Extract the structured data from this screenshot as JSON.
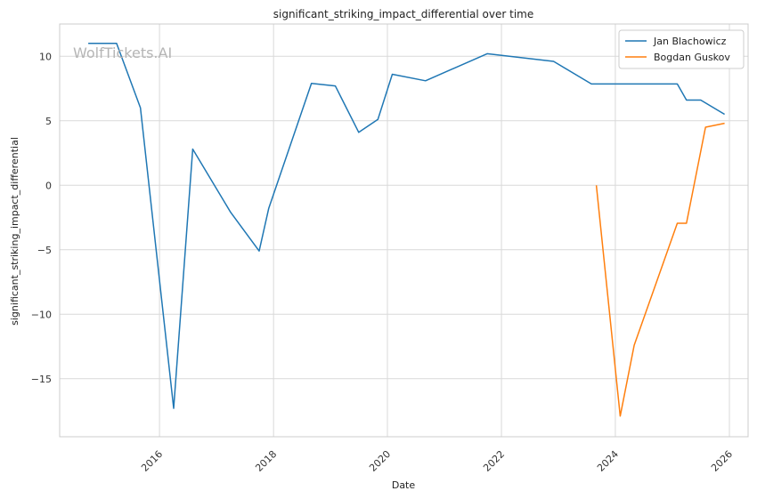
{
  "chart_data": {
    "type": "line",
    "title": "significant_striking_impact_differential over time",
    "xlabel": "Date",
    "ylabel": "significant_striking_impact_differential",
    "watermark": "WolfTickets.AI",
    "xlim": [
      "2014-04-01",
      "2026-05-01"
    ],
    "ylim": [
      -19.5,
      12.5
    ],
    "x_ticks": [
      "2016",
      "2018",
      "2020",
      "2022",
      "2024",
      "2026"
    ],
    "y_ticks": [
      10,
      5,
      0,
      -5,
      -10,
      -15
    ],
    "y_tick_labels": [
      "10",
      "5",
      "0",
      "−5",
      "−10",
      "−15"
    ],
    "grid": true,
    "legend_position": "top-right",
    "series": [
      {
        "name": "Jan Blachowicz",
        "color": "#1f77b4",
        "x": [
          "2014-10-01",
          "2015-04-01",
          "2015-09-01",
          "2016-04-01",
          "2016-08-01",
          "2017-04-01",
          "2017-10-01",
          "2017-12-01",
          "2018-09-01",
          "2019-02-01",
          "2019-07-01",
          "2019-11-01",
          "2020-02-01",
          "2020-09-01",
          "2021-10-01",
          "2022-12-01",
          "2023-08-01",
          "2025-02-01",
          "2025-04-01",
          "2025-07-01",
          "2025-12-01"
        ],
        "y": [
          11.0,
          11.0,
          6.0,
          -17.3,
          2.8,
          -2.1,
          -5.1,
          -1.8,
          7.9,
          7.7,
          4.1,
          5.1,
          8.6,
          8.1,
          10.2,
          9.6,
          7.85,
          7.85,
          6.6,
          6.6,
          5.5
        ]
      },
      {
        "name": "Bogdan Guskov",
        "color": "#ff7f0e",
        "x": [
          "2023-09-01",
          "2024-02-01",
          "2024-05-01",
          "2025-02-01",
          "2025-04-01",
          "2025-08-01",
          "2025-12-01"
        ],
        "y": [
          0.0,
          -17.9,
          -12.4,
          -2.95,
          -2.95,
          4.5,
          4.8
        ]
      }
    ]
  }
}
